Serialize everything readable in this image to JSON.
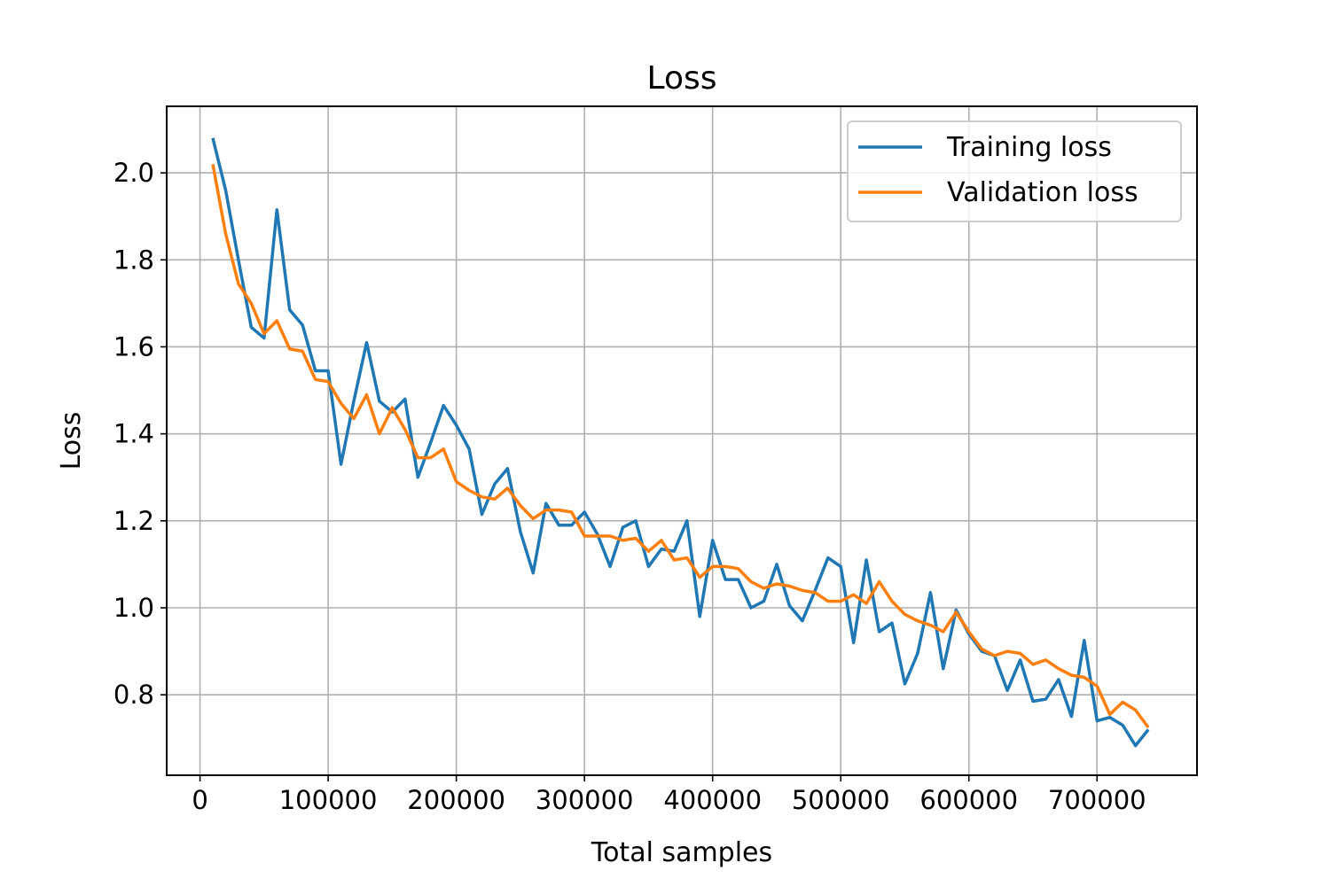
{
  "chart_data": {
    "type": "line",
    "title": "Loss",
    "xlabel": "Total samples",
    "ylabel": "Loss",
    "xlim": [
      -26000,
      778000
    ],
    "ylim": [
      0.615,
      2.153
    ],
    "grid": true,
    "legend_position": "top-right",
    "xticks": [
      0,
      100000,
      200000,
      300000,
      400000,
      500000,
      600000,
      700000
    ],
    "xtick_labels": [
      "0",
      "100000",
      "200000",
      "300000",
      "400000",
      "500000",
      "600000",
      "700000"
    ],
    "yticks": [
      0.8,
      1.0,
      1.2,
      1.4,
      1.6,
      1.8,
      2.0
    ],
    "ytick_labels": [
      "0.8",
      "1.0",
      "1.2",
      "1.4",
      "1.6",
      "1.8",
      "2.0"
    ],
    "series": [
      {
        "name": "Training loss",
        "color": "#1f77b4",
        "x": [
          10000,
          20000,
          30000,
          40000,
          50000,
          60000,
          70000,
          80000,
          90000,
          100000,
          110000,
          120000,
          130000,
          140000,
          150000,
          160000,
          170000,
          180000,
          190000,
          200000,
          210000,
          220000,
          230000,
          240000,
          250000,
          260000,
          270000,
          280000,
          290000,
          300000,
          310000,
          320000,
          330000,
          340000,
          350000,
          360000,
          370000,
          380000,
          390000,
          400000,
          410000,
          420000,
          430000,
          440000,
          450000,
          460000,
          470000,
          480000,
          490000,
          500000,
          510000,
          520000,
          530000,
          540000,
          550000,
          560000,
          570000,
          580000,
          590000,
          600000,
          610000,
          620000,
          630000,
          640000,
          650000,
          660000,
          670000,
          680000,
          690000,
          700000,
          710000,
          720000,
          730000,
          740000
        ],
        "values": [
          2.08,
          1.96,
          1.8,
          1.645,
          1.62,
          1.915,
          1.685,
          1.65,
          1.545,
          1.545,
          1.33,
          1.475,
          1.61,
          1.475,
          1.45,
          1.48,
          1.3,
          1.38,
          1.465,
          1.42,
          1.365,
          1.215,
          1.285,
          1.32,
          1.175,
          1.08,
          1.24,
          1.19,
          1.19,
          1.22,
          1.17,
          1.095,
          1.185,
          1.2,
          1.095,
          1.135,
          1.13,
          1.2,
          0.98,
          1.155,
          1.065,
          1.065,
          1.0,
          1.015,
          1.1,
          1.005,
          0.97,
          1.04,
          1.115,
          1.095,
          0.92,
          1.11,
          0.945,
          0.965,
          0.825,
          0.895,
          1.035,
          0.86,
          0.995,
          0.94,
          0.9,
          0.89,
          0.81,
          0.88,
          0.785,
          0.79,
          0.835,
          0.75,
          0.925,
          0.74,
          0.748,
          0.73,
          0.683,
          0.72
        ]
      },
      {
        "name": "Validation loss",
        "color": "#ff7f0e",
        "x": [
          10000,
          20000,
          30000,
          40000,
          50000,
          60000,
          70000,
          80000,
          90000,
          100000,
          110000,
          120000,
          130000,
          140000,
          150000,
          160000,
          170000,
          180000,
          190000,
          200000,
          210000,
          220000,
          230000,
          240000,
          250000,
          260000,
          270000,
          280000,
          290000,
          300000,
          310000,
          320000,
          330000,
          340000,
          350000,
          360000,
          370000,
          380000,
          390000,
          400000,
          410000,
          420000,
          430000,
          440000,
          450000,
          460000,
          470000,
          480000,
          490000,
          500000,
          510000,
          520000,
          530000,
          540000,
          550000,
          560000,
          570000,
          580000,
          590000,
          600000,
          610000,
          620000,
          630000,
          640000,
          650000,
          660000,
          670000,
          680000,
          690000,
          700000,
          710000,
          720000,
          730000,
          740000
        ],
        "values": [
          2.02,
          1.86,
          1.745,
          1.7,
          1.63,
          1.66,
          1.595,
          1.59,
          1.525,
          1.52,
          1.47,
          1.435,
          1.49,
          1.4,
          1.46,
          1.41,
          1.345,
          1.345,
          1.365,
          1.29,
          1.27,
          1.255,
          1.25,
          1.275,
          1.235,
          1.205,
          1.225,
          1.225,
          1.22,
          1.165,
          1.165,
          1.165,
          1.155,
          1.16,
          1.13,
          1.155,
          1.11,
          1.115,
          1.07,
          1.095,
          1.095,
          1.09,
          1.06,
          1.045,
          1.055,
          1.05,
          1.04,
          1.035,
          1.015,
          1.015,
          1.03,
          1.01,
          1.06,
          1.015,
          0.985,
          0.97,
          0.96,
          0.945,
          0.99,
          0.945,
          0.905,
          0.89,
          0.9,
          0.895,
          0.87,
          0.88,
          0.86,
          0.845,
          0.84,
          0.82,
          0.755,
          0.783,
          0.765,
          0.725
        ]
      }
    ]
  }
}
